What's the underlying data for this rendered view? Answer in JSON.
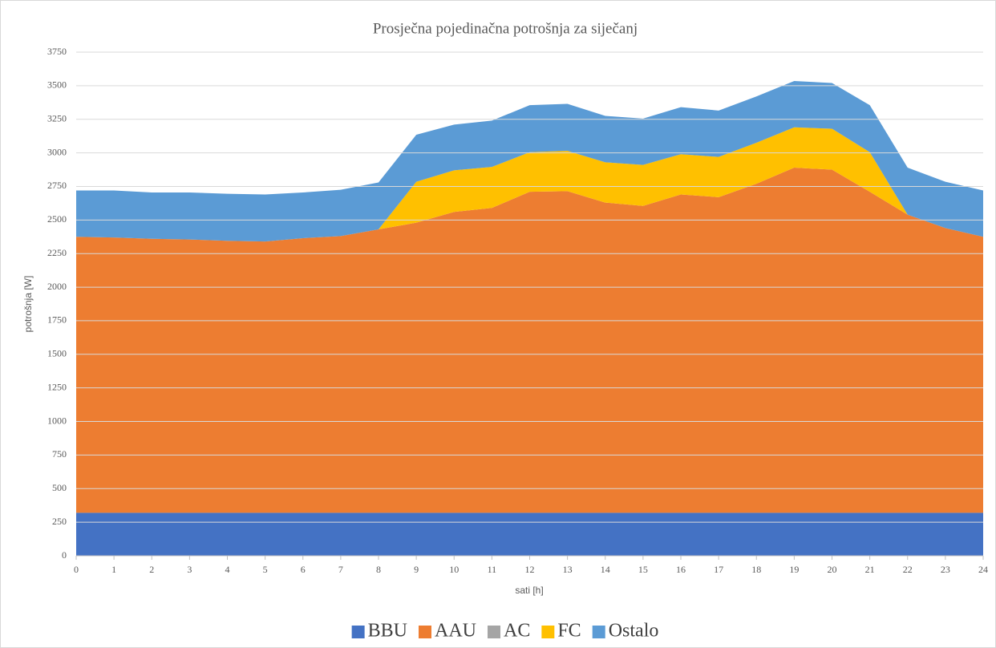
{
  "chart_data": {
    "type": "stacked_area",
    "title": "Prosječna pojedinačna potrošnja za siječanj",
    "x_label": "sati [h]",
    "y_label": "potrošnja [W]",
    "x": [
      0,
      1,
      2,
      3,
      4,
      5,
      6,
      7,
      8,
      9,
      10,
      11,
      12,
      13,
      14,
      15,
      16,
      17,
      18,
      19,
      20,
      21,
      22,
      23,
      24
    ],
    "xlim": [
      0,
      24
    ],
    "xticks": [
      0,
      1,
      2,
      3,
      4,
      5,
      6,
      7,
      8,
      9,
      10,
      11,
      12,
      13,
      14,
      15,
      16,
      17,
      18,
      19,
      20,
      21,
      22,
      23,
      24
    ],
    "ylim": [
      0,
      3750
    ],
    "yticks": [
      0,
      250,
      500,
      750,
      1000,
      1250,
      1500,
      1750,
      2000,
      2250,
      2500,
      2750,
      3000,
      3250,
      3500,
      3750
    ],
    "grid": true,
    "legend": "bottom",
    "series": [
      {
        "name": "BBU",
        "color": "#4472c4",
        "values": [
          320,
          320,
          320,
          320,
          320,
          320,
          320,
          320,
          320,
          320,
          320,
          320,
          320,
          320,
          320,
          320,
          320,
          320,
          320,
          320,
          320,
          320,
          320,
          320,
          320
        ]
      },
      {
        "name": "AAU",
        "color": "#ed7d31",
        "values": [
          2055,
          2050,
          2040,
          2035,
          2025,
          2020,
          2045,
          2060,
          2110,
          2160,
          2240,
          2270,
          2390,
          2395,
          2310,
          2285,
          2370,
          2350,
          2450,
          2570,
          2555,
          2390,
          2220,
          2120,
          2055
        ]
      },
      {
        "name": "AC",
        "color": "#a5a5a5",
        "values": [
          0,
          0,
          0,
          0,
          0,
          0,
          0,
          0,
          0,
          0,
          0,
          0,
          0,
          0,
          0,
          0,
          0,
          0,
          0,
          0,
          0,
          0,
          0,
          0,
          0
        ]
      },
      {
        "name": "FC",
        "color": "#ffc000",
        "values": [
          0,
          0,
          0,
          0,
          0,
          0,
          0,
          0,
          0,
          305,
          310,
          305,
          295,
          300,
          300,
          305,
          300,
          300,
          305,
          300,
          305,
          295,
          0,
          0,
          0
        ]
      },
      {
        "name": "Ostalo",
        "color": "#5b9bd5",
        "values": [
          345,
          350,
          345,
          350,
          350,
          350,
          340,
          345,
          350,
          350,
          340,
          345,
          350,
          350,
          345,
          345,
          350,
          345,
          345,
          345,
          340,
          350,
          350,
          345,
          345
        ]
      }
    ]
  }
}
